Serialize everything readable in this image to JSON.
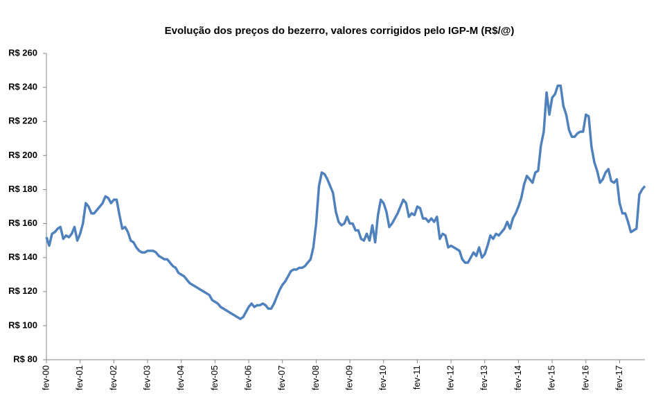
{
  "chart_data": {
    "type": "line",
    "title": "Evolução dos preços do bezerro, valores corrigidos pelo IGP-M  (R$/@)",
    "categories": [
      "fev-00",
      null,
      null,
      null,
      null,
      null,
      null,
      null,
      null,
      null,
      null,
      null,
      "fev-01",
      null,
      null,
      null,
      null,
      null,
      null,
      null,
      null,
      null,
      null,
      null,
      "fev-02",
      null,
      null,
      null,
      null,
      null,
      null,
      null,
      null,
      null,
      null,
      null,
      "fev-03",
      null,
      null,
      null,
      null,
      null,
      null,
      null,
      null,
      null,
      null,
      null,
      "fev-04",
      null,
      null,
      null,
      null,
      null,
      null,
      null,
      null,
      null,
      null,
      null,
      "fev-05",
      null,
      null,
      null,
      null,
      null,
      null,
      null,
      null,
      null,
      null,
      null,
      "fev-06",
      null,
      null,
      null,
      null,
      null,
      null,
      null,
      null,
      null,
      null,
      null,
      "fev-07",
      null,
      null,
      null,
      null,
      null,
      null,
      null,
      null,
      null,
      null,
      null,
      "fev-08",
      null,
      null,
      null,
      null,
      null,
      null,
      null,
      null,
      null,
      null,
      null,
      "fev-09",
      null,
      null,
      null,
      null,
      null,
      null,
      null,
      null,
      null,
      null,
      null,
      "fev-10",
      null,
      null,
      null,
      null,
      null,
      null,
      null,
      null,
      null,
      null,
      null,
      "fev-11",
      null,
      null,
      null,
      null,
      null,
      null,
      null,
      null,
      null,
      null,
      null,
      "fev-12",
      null,
      null,
      null,
      null,
      null,
      null,
      null,
      null,
      null,
      null,
      null,
      "fev-13",
      null,
      null,
      null,
      null,
      null,
      null,
      null,
      null,
      null,
      null,
      null,
      "fev-14",
      null,
      null,
      null,
      null,
      null,
      null,
      null,
      null,
      null,
      null,
      null,
      "fev-15",
      null,
      null,
      null,
      null,
      null,
      null,
      null,
      null,
      null,
      null,
      null,
      "fev-16",
      null,
      null,
      null,
      null,
      null,
      null,
      null,
      null,
      null,
      null,
      null,
      "fev-17",
      null,
      null,
      null,
      null,
      null,
      null,
      null,
      null,
      null
    ],
    "series": [
      {
        "color": "#4f81bd",
        "values": [
          152,
          147,
          154,
          155,
          157,
          158,
          151,
          153,
          152,
          154,
          158,
          150,
          154,
          160,
          172,
          170,
          166,
          166,
          168,
          170,
          172,
          176,
          175,
          172,
          174,
          174,
          165,
          157,
          158,
          155,
          150,
          149,
          146,
          144,
          143,
          143,
          144,
          144,
          144,
          143,
          141,
          140,
          139,
          139,
          137,
          135,
          134,
          131,
          130,
          129,
          127,
          125,
          124,
          123,
          122,
          121,
          120,
          119,
          118,
          115,
          114,
          113,
          111,
          110,
          109,
          108,
          107,
          106,
          105,
          104,
          105,
          108,
          111,
          113,
          111,
          112,
          112,
          113,
          112,
          110,
          110,
          113,
          117,
          121,
          124,
          126,
          129,
          132,
          133,
          133,
          134,
          134,
          135,
          137,
          139,
          146,
          160,
          182,
          190,
          189,
          186,
          182,
          178,
          167,
          161,
          159,
          160,
          164,
          160,
          160,
          156,
          156,
          151,
          150,
          154,
          150,
          159,
          149,
          165,
          174,
          172,
          167,
          158,
          160,
          163,
          166,
          170,
          174,
          172,
          164,
          166,
          165,
          170,
          169,
          163,
          163,
          161,
          163,
          161,
          164,
          151,
          154,
          153,
          146,
          147,
          146,
          145,
          144,
          139,
          137,
          137,
          140,
          143,
          141,
          146,
          140,
          142,
          147,
          153,
          151,
          154,
          153,
          155,
          157,
          161,
          157,
          163,
          166,
          170,
          175,
          183,
          188,
          186,
          184,
          190,
          191,
          206,
          214,
          237,
          224,
          234,
          236,
          241,
          241,
          229,
          224,
          215,
          211,
          211,
          213,
          214,
          214,
          224,
          223,
          205,
          196,
          191,
          184,
          186,
          190,
          192,
          185,
          184,
          186,
          172,
          166,
          166,
          161,
          155,
          156,
          157,
          177,
          180,
          182
        ]
      }
    ],
    "ylim": [
      80,
      260
    ],
    "yticks": [
      {
        "value": 80,
        "label": "R$ 80"
      },
      {
        "value": 100,
        "label": "R$ 100"
      },
      {
        "value": 120,
        "label": "R$ 120"
      },
      {
        "value": 140,
        "label": "R$ 140"
      },
      {
        "value": 160,
        "label": "R$ 160"
      },
      {
        "value": 180,
        "label": "R$ 180"
      },
      {
        "value": 200,
        "label": "R$ 200"
      },
      {
        "value": 220,
        "label": "R$ 220"
      },
      {
        "value": 240,
        "label": "R$ 240"
      },
      {
        "value": 260,
        "label": "R$ 260"
      }
    ],
    "grid": false
  }
}
